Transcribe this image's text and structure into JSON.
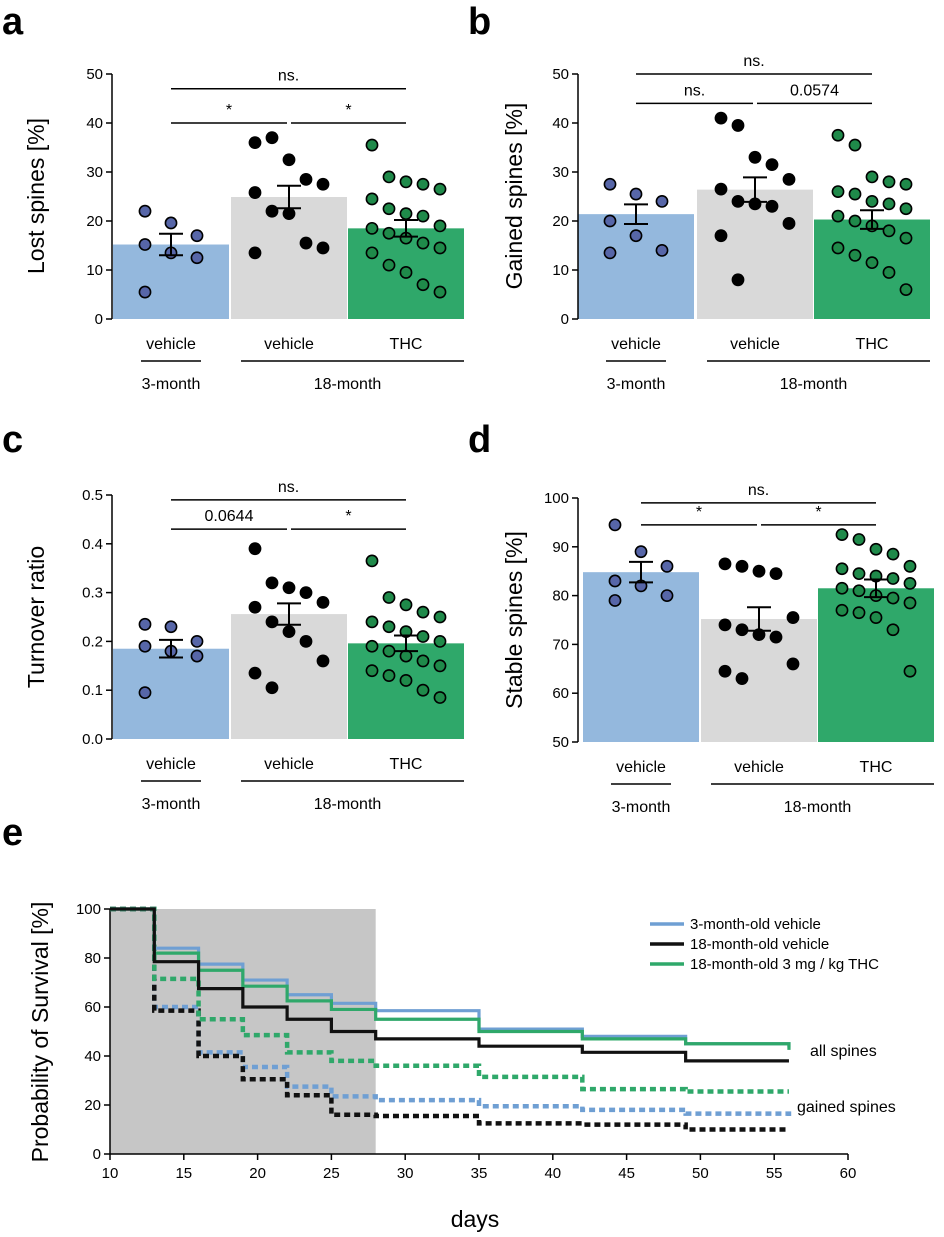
{
  "colors": {
    "blue": "#94b8dd",
    "blue_dot": "#5766a8",
    "gray": "#d9d9d9",
    "green": "#2fa86a",
    "green_dot": "#1f8a4a",
    "black": "#000000",
    "shade": "#c6c6c6",
    "line_blue": "#6f9fd3",
    "line_green": "#2fa86a",
    "line_black": "#111111"
  },
  "chart_data": [
    {
      "panel": "a",
      "type": "bar",
      "ylabel": "Lost spines [%]",
      "ylim": [
        0,
        50
      ],
      "yticks": [
        "0",
        "10",
        "20",
        "30",
        "40",
        "50"
      ],
      "categories": [
        "vehicle",
        "vehicle",
        "THC"
      ],
      "groups": [
        "3-month",
        "18-month"
      ],
      "values": [
        15.2,
        24.9,
        18.5
      ],
      "sem": [
        2.2,
        2.3,
        1.7
      ],
      "points": [
        [
          22,
          19.6,
          17,
          15.2,
          13.5,
          12.5,
          5.5
        ],
        [
          36,
          37,
          32.5,
          28.5,
          27.5,
          25.8,
          22,
          21.5,
          15.5,
          14.5,
          13.5
        ],
        [
          35.5,
          29,
          28,
          27.5,
          26.5,
          24.5,
          22.5,
          21.5,
          21,
          19,
          18.5,
          17.5,
          16.5,
          15.5,
          14.5,
          13.5,
          11,
          9.5,
          7,
          5.5
        ]
      ],
      "sig": [
        {
          "from": 0,
          "to": 2,
          "label": "ns.",
          "y": 47
        },
        {
          "from": 0,
          "to": 1,
          "label": "*",
          "y": 40
        },
        {
          "from": 1,
          "to": 2,
          "label": "*",
          "y": 40
        }
      ]
    },
    {
      "panel": "b",
      "type": "bar",
      "ylabel": "Gained spines [%]",
      "ylim": [
        0,
        50
      ],
      "yticks": [
        "0",
        "10",
        "20",
        "30",
        "40",
        "50"
      ],
      "categories": [
        "vehicle",
        "vehicle",
        "THC"
      ],
      "groups": [
        "3-month",
        "18-month"
      ],
      "values": [
        21.4,
        26.4,
        20.3
      ],
      "sem": [
        2.0,
        2.5,
        1.9
      ],
      "points": [
        [
          27.5,
          25.5,
          24,
          20,
          17,
          14,
          13.5
        ],
        [
          41,
          39.5,
          33,
          31.5,
          28.5,
          26.5,
          24,
          23.5,
          23,
          19.5,
          17,
          8
        ],
        [
          37.5,
          35.5,
          29,
          28,
          27.5,
          26,
          25.5,
          24,
          23.5,
          22.5,
          21,
          20,
          19,
          18,
          16.5,
          14.5,
          13,
          11.5,
          9.5,
          6
        ]
      ],
      "sig": [
        {
          "from": 0,
          "to": 2,
          "label": "ns.",
          "y": 50
        },
        {
          "from": 0,
          "to": 1,
          "label": "ns.",
          "y": 44
        },
        {
          "from": 1,
          "to": 2,
          "label": "0.0574",
          "y": 44
        }
      ]
    },
    {
      "panel": "c",
      "type": "bar",
      "ylabel": "Turnover ratio",
      "ylim": [
        0,
        0.5
      ],
      "yticks": [
        "0.0",
        "0.1",
        "0.2",
        "0.3",
        "0.4",
        "0.5"
      ],
      "categories": [
        "vehicle",
        "vehicle",
        "THC"
      ],
      "groups": [
        "3-month",
        "18-month"
      ],
      "values": [
        0.185,
        0.256,
        0.196
      ],
      "sem": [
        0.018,
        0.022,
        0.016
      ],
      "points": [
        [
          0.235,
          0.23,
          0.2,
          0.19,
          0.18,
          0.17,
          0.095
        ],
        [
          0.39,
          0.32,
          0.31,
          0.3,
          0.28,
          0.27,
          0.24,
          0.22,
          0.2,
          0.16,
          0.135,
          0.105
        ],
        [
          0.365,
          0.29,
          0.275,
          0.26,
          0.25,
          0.24,
          0.23,
          0.22,
          0.21,
          0.2,
          0.19,
          0.18,
          0.17,
          0.16,
          0.15,
          0.14,
          0.13,
          0.12,
          0.1,
          0.085
        ]
      ],
      "sig": [
        {
          "from": 0,
          "to": 2,
          "label": "ns.",
          "y": 0.49
        },
        {
          "from": 0,
          "to": 1,
          "label": "0.0644",
          "y": 0.43
        },
        {
          "from": 1,
          "to": 2,
          "label": "*",
          "y": 0.43
        }
      ]
    },
    {
      "panel": "d",
      "type": "bar",
      "ylabel": "Stable spines [%]",
      "ylim": [
        50,
        100
      ],
      "yticks": [
        "50",
        "60",
        "70",
        "80",
        "90",
        "100"
      ],
      "categories": [
        "vehicle",
        "vehicle",
        "THC"
      ],
      "groups": [
        "3-month",
        "18-month"
      ],
      "values": [
        84.8,
        75.2,
        81.5
      ],
      "sem": [
        2.1,
        2.4,
        1.8
      ],
      "points": [
        [
          94.5,
          89,
          86,
          83,
          82,
          80,
          79
        ],
        [
          86.5,
          86,
          85,
          84.5,
          75.5,
          74,
          73,
          72,
          71.5,
          66,
          64.5,
          63
        ],
        [
          92.5,
          91.5,
          89.5,
          88.5,
          86,
          85.5,
          84.5,
          84,
          83.5,
          82.5,
          81.5,
          81,
          80,
          79.5,
          78.5,
          77,
          76.5,
          75.5,
          73,
          64.5
        ]
      ],
      "sig": [
        {
          "from": 0,
          "to": 2,
          "label": "ns.",
          "y": 99
        },
        {
          "from": 0,
          "to": 1,
          "label": "*",
          "y": 94.5
        },
        {
          "from": 1,
          "to": 2,
          "label": "*",
          "y": 94.5
        }
      ]
    },
    {
      "panel": "e",
      "type": "line",
      "ylabel": "Probability of Survival [%]",
      "xlabel": "days",
      "xlim": [
        10,
        60
      ],
      "ylim": [
        0,
        100
      ],
      "xticks": [
        "10",
        "15",
        "20",
        "25",
        "30",
        "35",
        "40",
        "45",
        "50",
        "55",
        "60"
      ],
      "yticks": [
        "0",
        "20",
        "40",
        "60",
        "80",
        "100"
      ],
      "shaded_x": [
        10,
        28
      ],
      "legend": [
        "3-month-old vehicle",
        "18-month-old vehicle",
        "18-month-old 3 mg / kg THC"
      ],
      "curve_labels": [
        "all spines",
        "gained spines"
      ],
      "series": [
        {
          "name": "3-month-old vehicle",
          "group": "all spines",
          "color": "blue",
          "dashed": false,
          "x": [
            10,
            13,
            16,
            19,
            22,
            25,
            28,
            35,
            42,
            49,
            56
          ],
          "y": [
            100,
            84,
            77.5,
            71,
            65,
            61.5,
            58.5,
            51,
            48,
            45,
            43.5
          ]
        },
        {
          "name": "18-month-old vehicle",
          "group": "all spines",
          "color": "black",
          "dashed": false,
          "x": [
            10,
            13,
            16,
            19,
            22,
            25,
            28,
            35,
            42,
            49,
            56
          ],
          "y": [
            100,
            78.5,
            67.5,
            60,
            55,
            50,
            47,
            44,
            41.5,
            38,
            38
          ]
        },
        {
          "name": "18-month-old 3 mg / kg THC",
          "group": "all spines",
          "color": "green",
          "dashed": false,
          "x": [
            10,
            13,
            16,
            19,
            22,
            25,
            28,
            35,
            42,
            49,
            56
          ],
          "y": [
            100,
            82,
            75,
            68.5,
            62.5,
            59,
            55,
            50,
            47,
            45,
            42.5
          ]
        },
        {
          "name": "3-month-old vehicle",
          "group": "gained spines",
          "color": "blue",
          "dashed": true,
          "x": [
            10,
            13,
            16,
            19,
            22,
            25,
            28,
            35,
            42,
            49,
            56
          ],
          "y": [
            100,
            60,
            41.5,
            35.5,
            27.5,
            23.5,
            22,
            19.5,
            18,
            16.5,
            15
          ]
        },
        {
          "name": "18-month-old vehicle",
          "group": "gained spines",
          "color": "black",
          "dashed": true,
          "x": [
            10,
            13,
            16,
            19,
            22,
            25,
            28,
            35,
            42,
            49,
            56
          ],
          "y": [
            100,
            58.5,
            40,
            30.5,
            24,
            16,
            15.5,
            12.5,
            12,
            10,
            10
          ]
        },
        {
          "name": "18-month-old 3 mg / kg THC",
          "group": "gained spines",
          "color": "green",
          "dashed": true,
          "x": [
            10,
            13,
            16,
            19,
            22,
            25,
            28,
            35,
            42,
            49,
            56
          ],
          "y": [
            100,
            71.5,
            55,
            48.5,
            41.5,
            38,
            36,
            31.5,
            26.5,
            25.5,
            25.5
          ]
        }
      ]
    }
  ]
}
